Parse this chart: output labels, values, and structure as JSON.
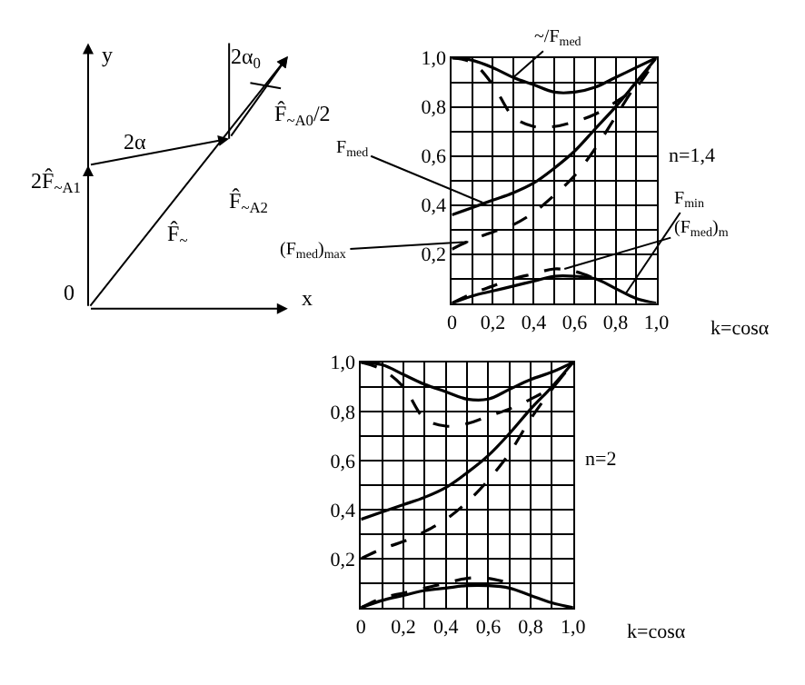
{
  "chart_data": [
    {
      "type": "other",
      "annotations": [
        "y",
        "x",
        "0",
        "2α",
        "2α$_{0}$",
        "F̂$_{~A0}$/2",
        "2F̂$_{~A1}$",
        "F̂$_{~A2}$",
        "F̂$_{~}$"
      ]
    },
    {
      "type": "line",
      "x": [
        0,
        0.1,
        0.2,
        0.3,
        0.4,
        0.5,
        0.6,
        0.7,
        0.8,
        0.9,
        1.0
      ],
      "xlabel": "k=cosα",
      "grid": true,
      "marker": "none",
      "xlim": [
        0,
        1.0
      ],
      "ylim": [
        0,
        1.0
      ],
      "xticks": [
        0,
        {
          "value": 0.1,
          "label": null
        },
        {
          "value": 0.2,
          "label": "0,2"
        },
        {
          "value": 0.3,
          "label": null
        },
        {
          "value": 0.4,
          "label": "0,4"
        },
        {
          "value": 0.5,
          "label": null
        },
        {
          "value": 0.6,
          "label": "0,6"
        },
        {
          "value": 0.7,
          "label": null
        },
        {
          "value": 0.8,
          "label": "0,8"
        },
        {
          "value": 0.9,
          "label": null
        },
        {
          "value": 1.0,
          "label": "1,0"
        }
      ],
      "yticks": [
        {
          "value": 0.1,
          "label": null
        },
        {
          "value": 0.2,
          "label": "0,2"
        },
        {
          "value": 0.3,
          "label": null
        },
        {
          "value": 0.4,
          "label": "0,4"
        },
        {
          "value": 0.5,
          "label": null
        },
        {
          "value": 0.6,
          "label": "0,6"
        },
        {
          "value": 0.7,
          "label": null
        },
        {
          "value": 0.8,
          "label": "0,8"
        },
        {
          "value": 0.9,
          "label": null
        },
        {
          "value": 1.0,
          "label": "1,0"
        }
      ],
      "series": [
        {
          "color": "#000000",
          "line_style": "solid",
          "values": [
            1.0,
            0.99,
            0.96,
            0.92,
            0.89,
            0.86,
            0.86,
            0.88,
            0.92,
            0.96,
            1.0
          ]
        },
        {
          "color": "#000000",
          "line_style": "dashed",
          "values": [
            1.0,
            0.98,
            0.89,
            0.76,
            0.72,
            0.72,
            0.74,
            0.77,
            0.82,
            0.88,
            1.0
          ]
        },
        {
          "color": "#000000",
          "line_style": "solid",
          "values": [
            0.36,
            0.39,
            0.42,
            0.45,
            0.49,
            0.55,
            0.62,
            0.71,
            0.8,
            0.9,
            1.0
          ]
        },
        {
          "color": "#000000",
          "line_style": "dashed",
          "values": [
            0.22,
            0.26,
            0.29,
            0.32,
            0.37,
            0.44,
            0.52,
            0.63,
            0.76,
            0.89,
            1.0
          ]
        },
        {
          "color": "#000000",
          "line_style": "solid",
          "values": [
            0.0,
            0.03,
            0.05,
            0.07,
            0.09,
            0.11,
            0.11,
            0.1,
            0.06,
            0.02,
            0.0
          ]
        },
        {
          "color": "#000000",
          "line_style": "dashed",
          "values": [
            0.0,
            0.04,
            0.07,
            0.1,
            0.12,
            0.14,
            0.13,
            0.1,
            null,
            null,
            null
          ]
        }
      ],
      "annotations": [
        {
          "text": "~/F$_{med}$",
          "x": 0.3,
          "y": 0.92
        },
        {
          "text": "F$_{med}$",
          "x": 0.15,
          "y": 0.41
        },
        {
          "text": "(F$_{med}$)$_{max}$",
          "x": 0.08,
          "y": 0.25
        },
        {
          "text": "F$_{min}$",
          "x": 0.85,
          "y": 0.04
        },
        {
          "text": "(F$_{med}$)$_{m}$",
          "x": 0.55,
          "y": 0.14
        },
        "n=1,4"
      ]
    },
    {
      "type": "line",
      "x": [
        0,
        0.1,
        0.2,
        0.3,
        0.4,
        0.5,
        0.6,
        0.7,
        0.8,
        0.9,
        1.0
      ],
      "xlabel": "k=cosα",
      "grid": true,
      "marker": "none",
      "xlim": [
        0,
        1.0
      ],
      "ylim": [
        0,
        1.0
      ],
      "xticks": [
        0,
        {
          "value": 0.1,
          "label": null
        },
        {
          "value": 0.2,
          "label": "0,2"
        },
        {
          "value": 0.3,
          "label": null
        },
        {
          "value": 0.4,
          "label": "0,4"
        },
        {
          "value": 0.5,
          "label": null
        },
        {
          "value": 0.6,
          "label": "0,6"
        },
        {
          "value": 0.7,
          "label": null
        },
        {
          "value": 0.8,
          "label": "0,8"
        },
        {
          "value": 0.9,
          "label": null
        },
        {
          "value": 1.0,
          "label": "1,0"
        }
      ],
      "yticks": [
        {
          "value": 0.1,
          "label": null
        },
        {
          "value": 0.2,
          "label": "0,2"
        },
        {
          "value": 0.3,
          "label": null
        },
        {
          "value": 0.4,
          "label": "0,4"
        },
        {
          "value": 0.5,
          "label": null
        },
        {
          "value": 0.6,
          "label": "0,6"
        },
        {
          "value": 0.7,
          "label": null
        },
        {
          "value": 0.8,
          "label": "0,8"
        },
        {
          "value": 0.9,
          "label": null
        },
        {
          "value": 1.0,
          "label": "1,0"
        }
      ],
      "series": [
        {
          "color": "#000000",
          "line_style": "solid",
          "values": [
            1.0,
            0.99,
            0.95,
            0.91,
            0.88,
            0.85,
            0.85,
            0.89,
            0.93,
            0.96,
            1.0
          ]
        },
        {
          "color": "#000000",
          "line_style": "dashed",
          "values": [
            1.0,
            0.97,
            0.9,
            0.77,
            0.74,
            0.75,
            0.78,
            0.81,
            0.85,
            0.9,
            1.0
          ]
        },
        {
          "color": "#000000",
          "line_style": "solid",
          "values": [
            0.36,
            0.39,
            0.42,
            0.45,
            0.49,
            0.55,
            0.62,
            0.71,
            0.81,
            0.9,
            1.0
          ]
        },
        {
          "color": "#000000",
          "line_style": "dashed",
          "values": [
            0.2,
            0.24,
            0.27,
            0.31,
            0.36,
            0.43,
            0.52,
            0.63,
            0.77,
            0.89,
            1.0
          ]
        },
        {
          "color": "#000000",
          "line_style": "solid",
          "values": [
            0.0,
            0.03,
            0.05,
            0.07,
            0.08,
            0.09,
            0.09,
            0.08,
            0.05,
            0.02,
            0.0
          ]
        },
        {
          "color": "#000000",
          "line_style": "dashed",
          "values": [
            0.0,
            0.04,
            0.06,
            0.08,
            0.1,
            0.12,
            0.12,
            0.1,
            null,
            null,
            null
          ]
        }
      ],
      "annotations": [
        "n=2"
      ]
    }
  ]
}
